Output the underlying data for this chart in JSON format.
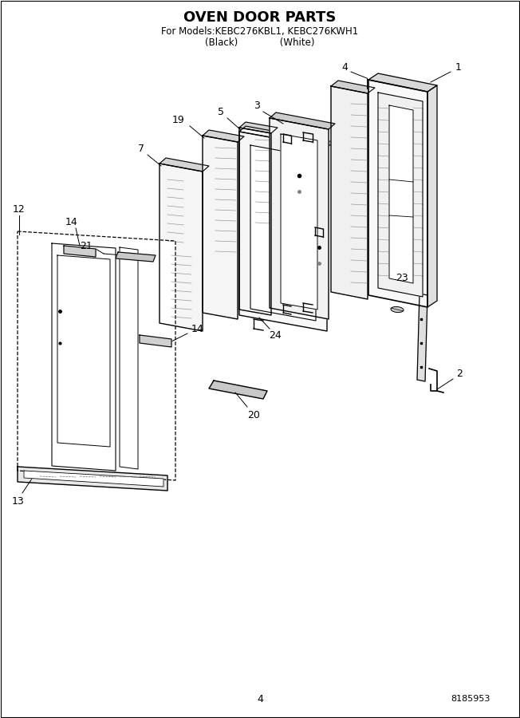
{
  "title": "OVEN DOOR PARTS",
  "subtitle1": "For Models:KEBC276KBL1, KEBC276KWH1",
  "subtitle2": "(Black)              (White)",
  "page_number": "4",
  "doc_number": "8185953",
  "background_color": "#ffffff",
  "line_color": "#000000"
}
